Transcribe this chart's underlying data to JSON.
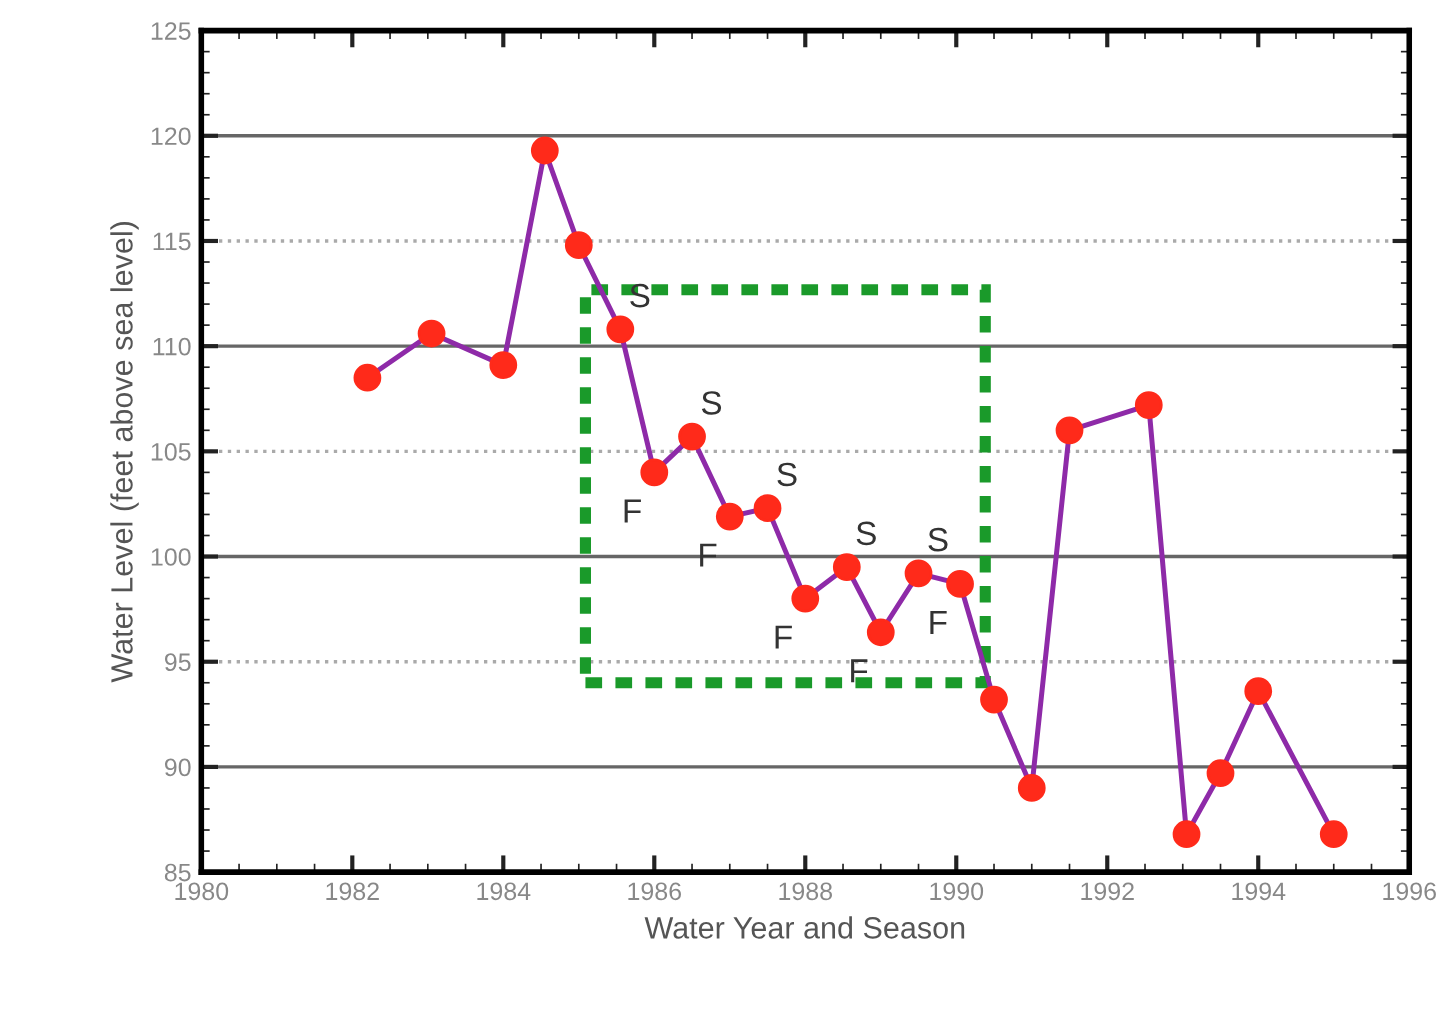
{
  "chart_data": {
    "type": "line",
    "xlabel": "Water Year and Season",
    "ylabel": "Water Level (feet above sea level)",
    "x": [
      1982.2,
      1983.05,
      1984.0,
      1984.55,
      1985.0,
      1985.55,
      1986.0,
      1986.5,
      1987.0,
      1987.5,
      1988.0,
      1988.55,
      1989.0,
      1989.5,
      1990.05,
      1990.5,
      1991.0,
      1991.5,
      1992.55,
      1993.05,
      1993.5,
      1994.0,
      1995.0
    ],
    "series": [
      {
        "color": "#ff2a1a",
        "values": [
          108.5,
          110.6,
          109.1,
          119.3,
          114.8,
          110.8,
          104.0,
          105.7,
          101.9,
          102.3,
          98.0,
          99.5,
          96.4,
          99.2,
          98.7,
          93.2,
          89.0,
          106.0,
          107.2,
          86.8,
          89.7,
          93.6,
          86.8
        ]
      }
    ],
    "annotations": [
      {
        "text": "S",
        "x": 1985.55,
        "y": 110.8
      },
      {
        "text": "F",
        "x": 1986.0,
        "y": 104.0
      },
      {
        "text": "S",
        "x": 1986.5,
        "y": 105.7
      },
      {
        "text": "F",
        "x": 1987.0,
        "y": 101.9
      },
      {
        "text": "S",
        "x": 1987.5,
        "y": 102.3
      },
      {
        "text": "F",
        "x": 1988.0,
        "y": 98.0
      },
      {
        "text": "S",
        "x": 1988.55,
        "y": 99.5
      },
      {
        "text": "F",
        "x": 1989.0,
        "y": 96.4
      },
      {
        "text": "S",
        "x": 1989.5,
        "y": 99.2
      },
      {
        "text": "F",
        "x": 1990.05,
        "y": 98.7
      }
    ],
    "xlim": [
      1980,
      1996
    ],
    "xticks": [
      1980,
      1982,
      1984,
      1986,
      1988,
      1990,
      1992,
      1994,
      1996
    ],
    "ylim": [
      85,
      125
    ],
    "yticks": [
      85,
      90,
      95,
      100,
      105,
      110,
      115,
      120,
      125
    ],
    "grid": "y",
    "legend": false,
    "marker": "circle",
    "line_style": "solid"
  }
}
